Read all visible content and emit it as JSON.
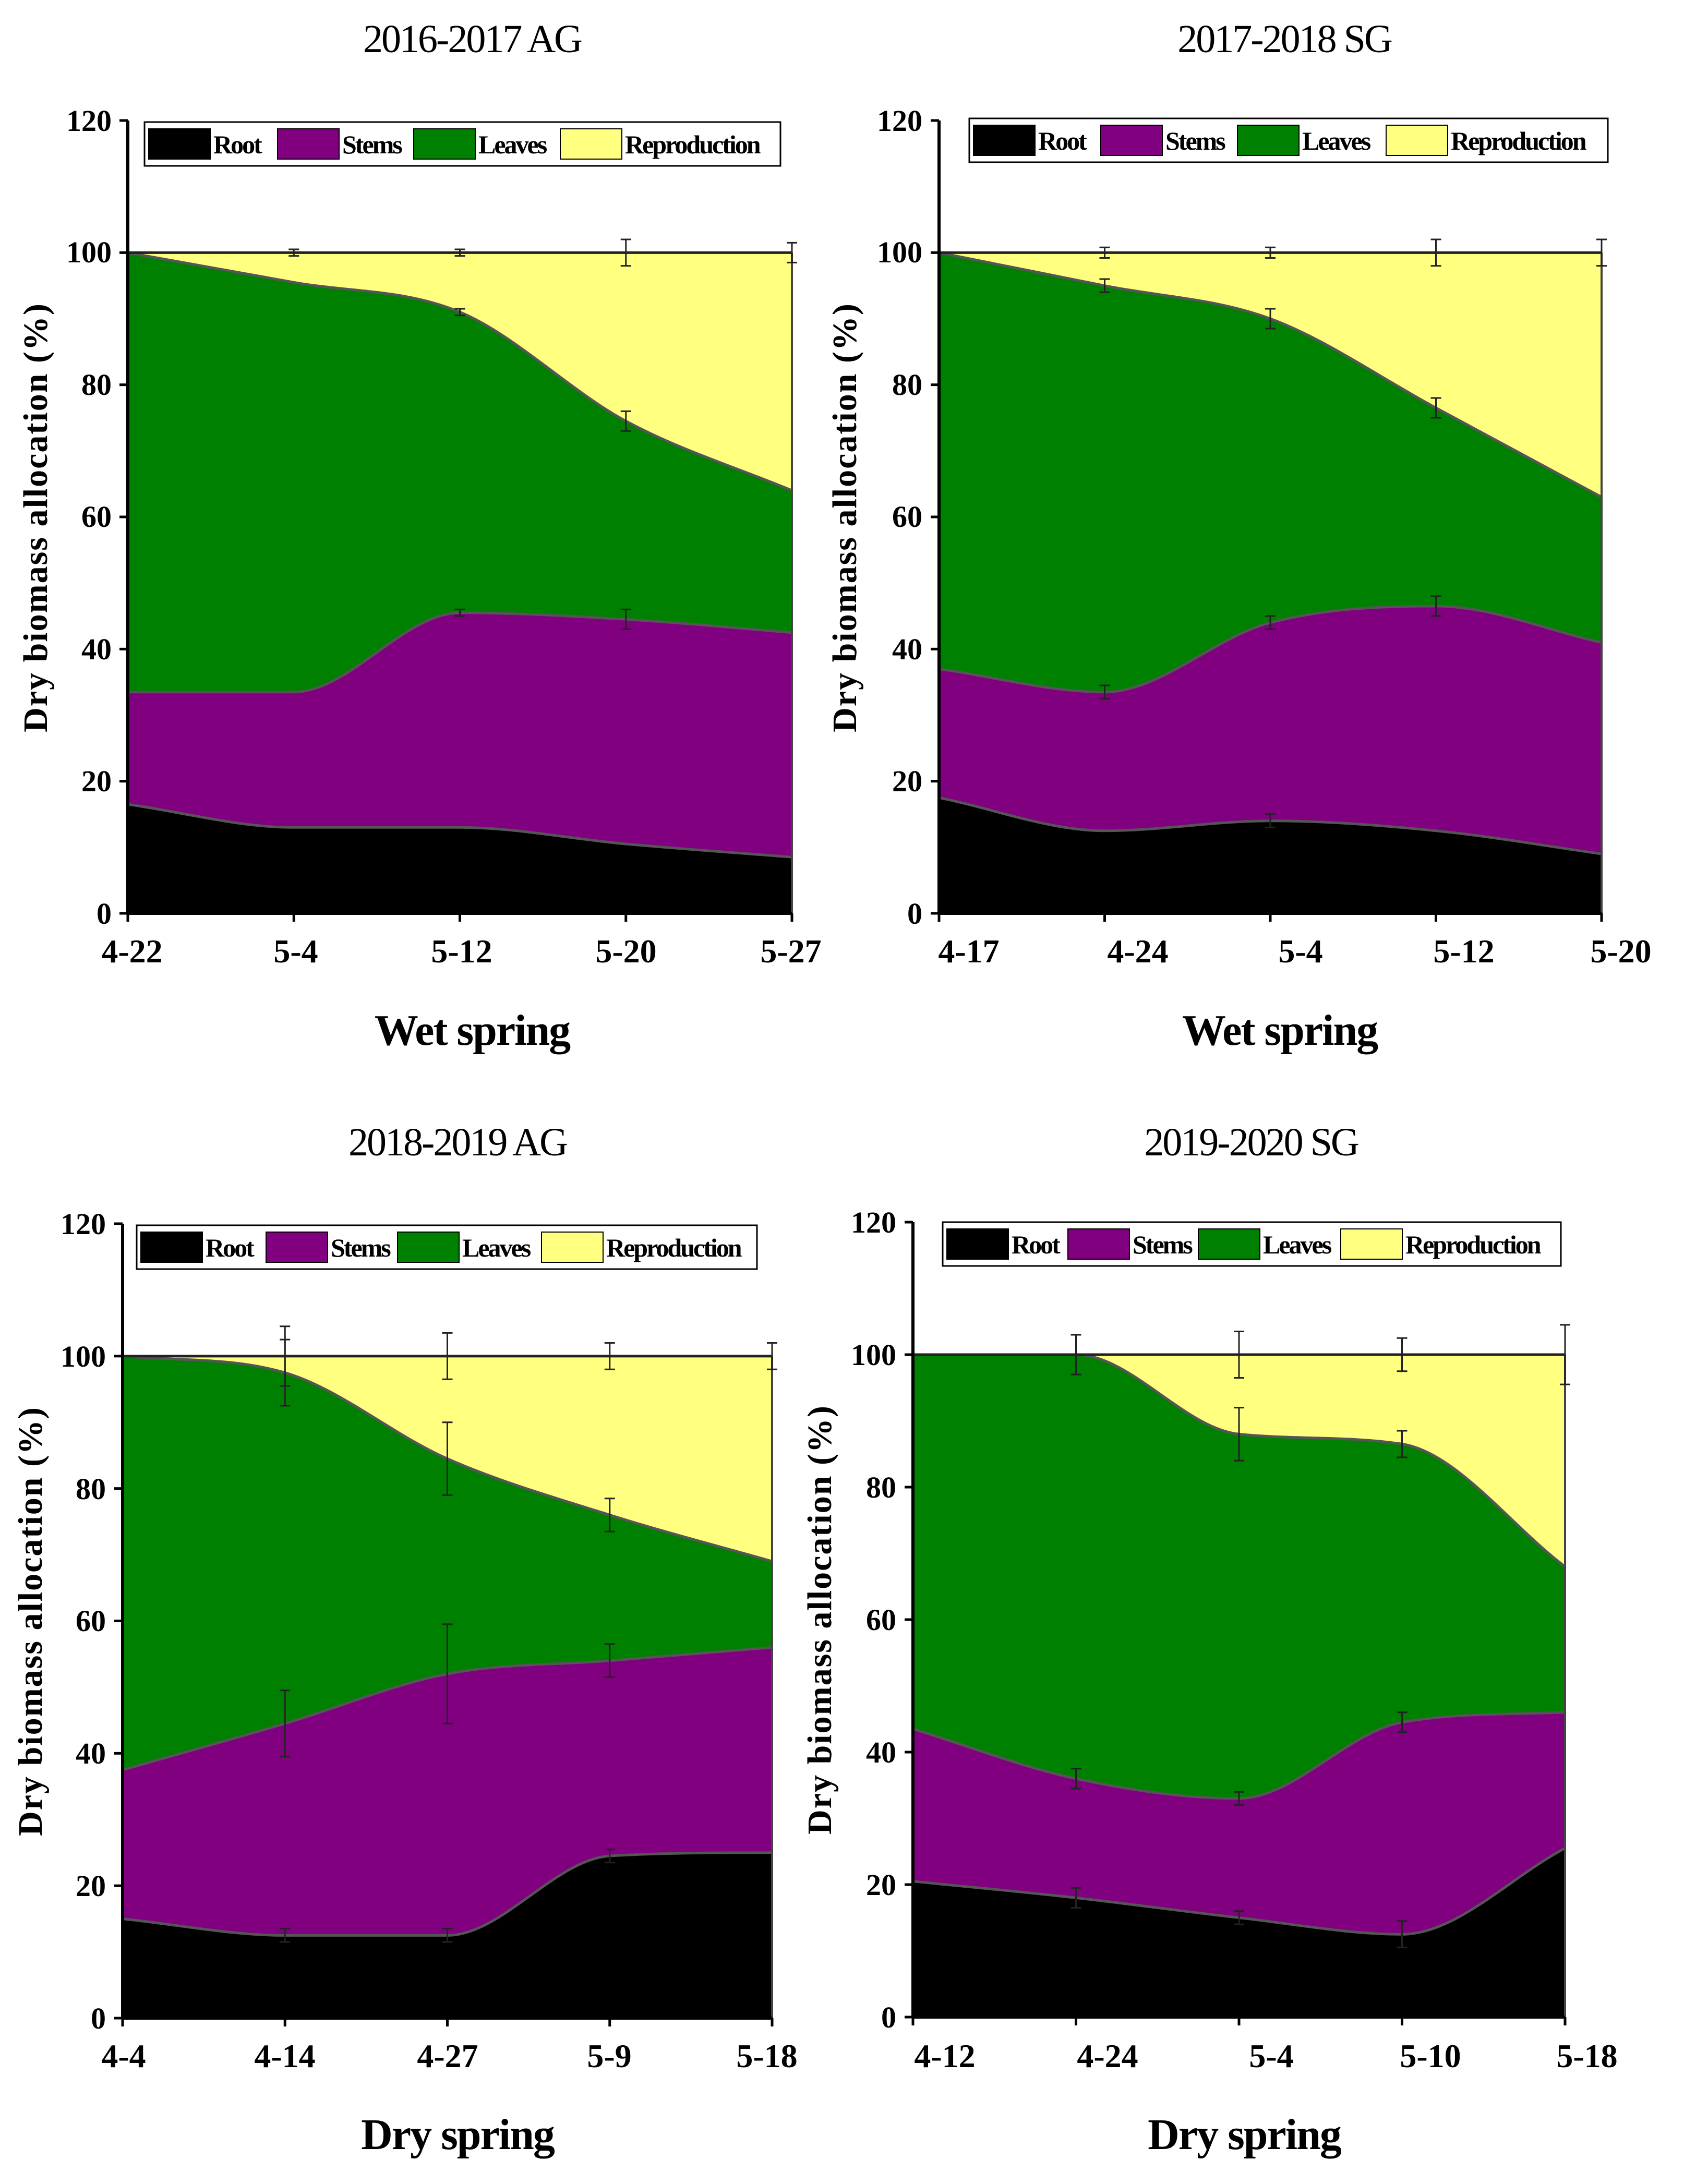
{
  "colors": {
    "root": "#000000",
    "stems": "#800080",
    "leaves": "#008000",
    "reproduction": "#ffff80",
    "boundary": "#555555"
  },
  "legend": [
    "Root",
    "Stems",
    "Leaves",
    "Reproduction"
  ],
  "chart_data": [
    {
      "type": "area",
      "stacked": true,
      "title": "2016-2017 AG",
      "xlabel": "Wet spring",
      "ylabel": "Dry biomass allocation (%)",
      "ylim": [
        0,
        120
      ],
      "yticks": [
        0,
        20,
        40,
        60,
        80,
        100,
        120
      ],
      "categories": [
        "4-22",
        "5-4",
        "5-12",
        "5-20",
        "5-27"
      ],
      "series": [
        {
          "name": "Root",
          "values": [
            16.5,
            13,
            13,
            10.5,
            8.5
          ]
        },
        {
          "name": "Stems",
          "values": [
            17,
            20.5,
            32.5,
            34,
            34
          ]
        },
        {
          "name": "Leaves",
          "values": [
            66.5,
            62,
            45.5,
            30,
            21.5
          ]
        },
        {
          "name": "Reproduction",
          "values": [
            0,
            4.5,
            9,
            25.5,
            36
          ]
        }
      ],
      "cumulative_errors": [
        [
          0,
          0,
          0,
          0,
          0
        ],
        [
          0,
          0,
          0.5,
          1.5,
          0
        ],
        [
          0,
          0,
          0.5,
          1.5,
          0
        ],
        [
          0,
          0.5,
          0.5,
          2,
          1.5
        ]
      ]
    },
    {
      "type": "area",
      "stacked": true,
      "title": "2017-2018 SG",
      "xlabel": "Wet spring",
      "ylabel": "Dry biomass allocation (%)",
      "ylim": [
        0,
        120
      ],
      "yticks": [
        0,
        20,
        40,
        60,
        80,
        100,
        120
      ],
      "categories": [
        "4-17",
        "4-24",
        "5-4",
        "5-12",
        "5-20"
      ],
      "series": [
        {
          "name": "Root",
          "values": [
            17.5,
            12.5,
            14,
            12.5,
            9
          ]
        },
        {
          "name": "Stems",
          "values": [
            19.5,
            21,
            30,
            34,
            32
          ]
        },
        {
          "name": "Leaves",
          "values": [
            63,
            61.5,
            46,
            30,
            22
          ]
        },
        {
          "name": "Reproduction",
          "values": [
            0,
            5,
            10,
            23.5,
            37
          ]
        }
      ],
      "cumulative_errors": [
        [
          0,
          0,
          1,
          0,
          0
        ],
        [
          0,
          1,
          1,
          1.5,
          0
        ],
        [
          0,
          1,
          1.5,
          1.5,
          0
        ],
        [
          0,
          0.8,
          0.8,
          2,
          2
        ]
      ]
    },
    {
      "type": "area",
      "stacked": true,
      "title": "2018-2019 AG",
      "xlabel": "Dry spring",
      "ylabel": "Dry biomass allocation (%)",
      "ylim": [
        0,
        120
      ],
      "yticks": [
        0,
        20,
        40,
        60,
        80,
        100,
        120
      ],
      "categories": [
        "4-4",
        "4-14",
        "4-27",
        "5-9",
        "5-18"
      ],
      "series": [
        {
          "name": "Root",
          "values": [
            15,
            12.5,
            12.5,
            24.5,
            25
          ]
        },
        {
          "name": "Stems",
          "values": [
            22.5,
            32,
            39.5,
            29.5,
            31
          ]
        },
        {
          "name": "Leaves",
          "values": [
            62.5,
            53,
            32.5,
            22,
            13
          ]
        },
        {
          "name": "Reproduction",
          "values": [
            0,
            2.5,
            15.5,
            24,
            31
          ]
        }
      ],
      "cumulative_errors": [
        [
          0,
          1,
          1,
          1,
          0
        ],
        [
          0,
          5,
          7.5,
          2.5,
          0
        ],
        [
          0,
          5,
          5.5,
          2.5,
          0
        ],
        [
          0,
          4.5,
          3.5,
          2,
          2
        ]
      ]
    },
    {
      "type": "area",
      "stacked": true,
      "title": "2019-2020 SG",
      "xlabel": "Dry spring",
      "ylabel": "Dry biomass allocation (%)",
      "ylim": [
        0,
        120
      ],
      "yticks": [
        0,
        20,
        40,
        60,
        80,
        100,
        120
      ],
      "categories": [
        "4-12",
        "4-24",
        "5-4",
        "5-10",
        "5-18"
      ],
      "series": [
        {
          "name": "Root",
          "values": [
            20.5,
            18,
            15,
            12.5,
            25.5
          ]
        },
        {
          "name": "Stems",
          "values": [
            23,
            18,
            18,
            32,
            20.5
          ]
        },
        {
          "name": "Leaves",
          "values": [
            56.5,
            64,
            55,
            42,
            22
          ]
        },
        {
          "name": "Reproduction",
          "values": [
            0,
            0,
            12,
            13.5,
            32
          ]
        }
      ],
      "cumulative_errors": [
        [
          0,
          1.5,
          1,
          2,
          0
        ],
        [
          0,
          1.5,
          1,
          1.5,
          0
        ],
        [
          0,
          3,
          4,
          2,
          0
        ],
        [
          0,
          3,
          3.5,
          2.5,
          4.5
        ]
      ]
    }
  ]
}
